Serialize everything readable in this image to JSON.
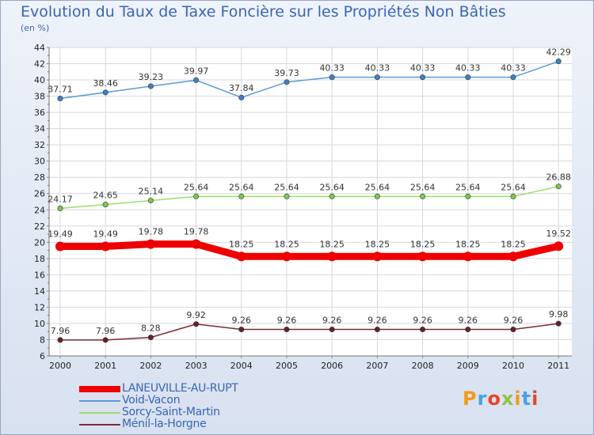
{
  "page": {
    "title": "Evolution du Taux de Taxe Foncière sur les Propriétés Non Bâties",
    "subtitle": "(en %)",
    "logo_text": "Proxiti"
  },
  "chart_data": {
    "type": "line",
    "title": "Evolution du Taux de Taxe Foncière sur les Propriétés Non Bâties",
    "ylabel": "(en %)",
    "xlabel": "",
    "ylim": [
      6,
      44
    ],
    "yticks": [
      6,
      8,
      10,
      12,
      14,
      16,
      18,
      20,
      22,
      24,
      26,
      28,
      30,
      32,
      34,
      36,
      38,
      40,
      42,
      44
    ],
    "x": [
      "2000",
      "2001",
      "2002",
      "2003",
      "2004",
      "2005",
      "2006",
      "2007",
      "2008",
      "2009",
      "2010",
      "2011"
    ],
    "grid": true,
    "legend_position": "bottom-left",
    "series": [
      {
        "name": "LANEUVILLE-AU-RUPT",
        "color": "#ee0000",
        "marker_color": "#ee0000",
        "emphasis": true,
        "values": [
          19.49,
          19.49,
          19.78,
          19.78,
          18.25,
          18.25,
          18.25,
          18.25,
          18.25,
          18.25,
          18.25,
          19.52
        ],
        "labels": [
          "19.49",
          "19.49",
          "19.78",
          "19.78",
          "18.25",
          "18.25",
          "18.25",
          "18.25",
          "18.25",
          "18.25",
          "18.25",
          "19.52"
        ]
      },
      {
        "name": "Void-Vacon",
        "color": "#5b9bd5",
        "marker_color": "#3c82c8",
        "emphasis": false,
        "values": [
          37.71,
          38.46,
          39.23,
          39.97,
          37.84,
          39.73,
          40.33,
          40.33,
          40.33,
          40.33,
          40.33,
          42.29
        ],
        "labels": [
          "37.71",
          "38.46",
          "39.23",
          "39.97",
          "37.84",
          "39.73",
          "40.33",
          "40.33",
          "40.33",
          "40.33",
          "40.33",
          "42.29"
        ]
      },
      {
        "name": "Sorcy-Saint-Martin",
        "color": "#99dd66",
        "marker_color": "#7cc84a",
        "emphasis": false,
        "values": [
          24.17,
          24.65,
          25.14,
          25.64,
          25.64,
          25.64,
          25.64,
          25.64,
          25.64,
          25.64,
          25.64,
          26.88
        ],
        "labels": [
          "24.17",
          "24.65",
          "25.14",
          "25.64",
          "25.64",
          "25.64",
          "25.64",
          "25.64",
          "25.64",
          "25.64",
          "25.64",
          "26.88"
        ]
      },
      {
        "name": "Ménil-la-Horgne",
        "color": "#7a2a35",
        "marker_color": "#6a1f2a",
        "emphasis": false,
        "values": [
          7.96,
          7.96,
          8.28,
          9.92,
          9.26,
          9.26,
          9.26,
          9.26,
          9.26,
          9.26,
          9.26,
          9.98
        ],
        "labels": [
          "7.96",
          "7.96",
          "8.28",
          "9.92",
          "9.26",
          "9.26",
          "9.26",
          "9.26",
          "9.26",
          "9.26",
          "9.26",
          "9.98"
        ]
      }
    ]
  },
  "logo_colors": [
    "#f29b1d",
    "#4aa3df",
    "#e8452c",
    "#8cc63f",
    "#f29b1d",
    "#4aa3df",
    "#e8452c"
  ]
}
